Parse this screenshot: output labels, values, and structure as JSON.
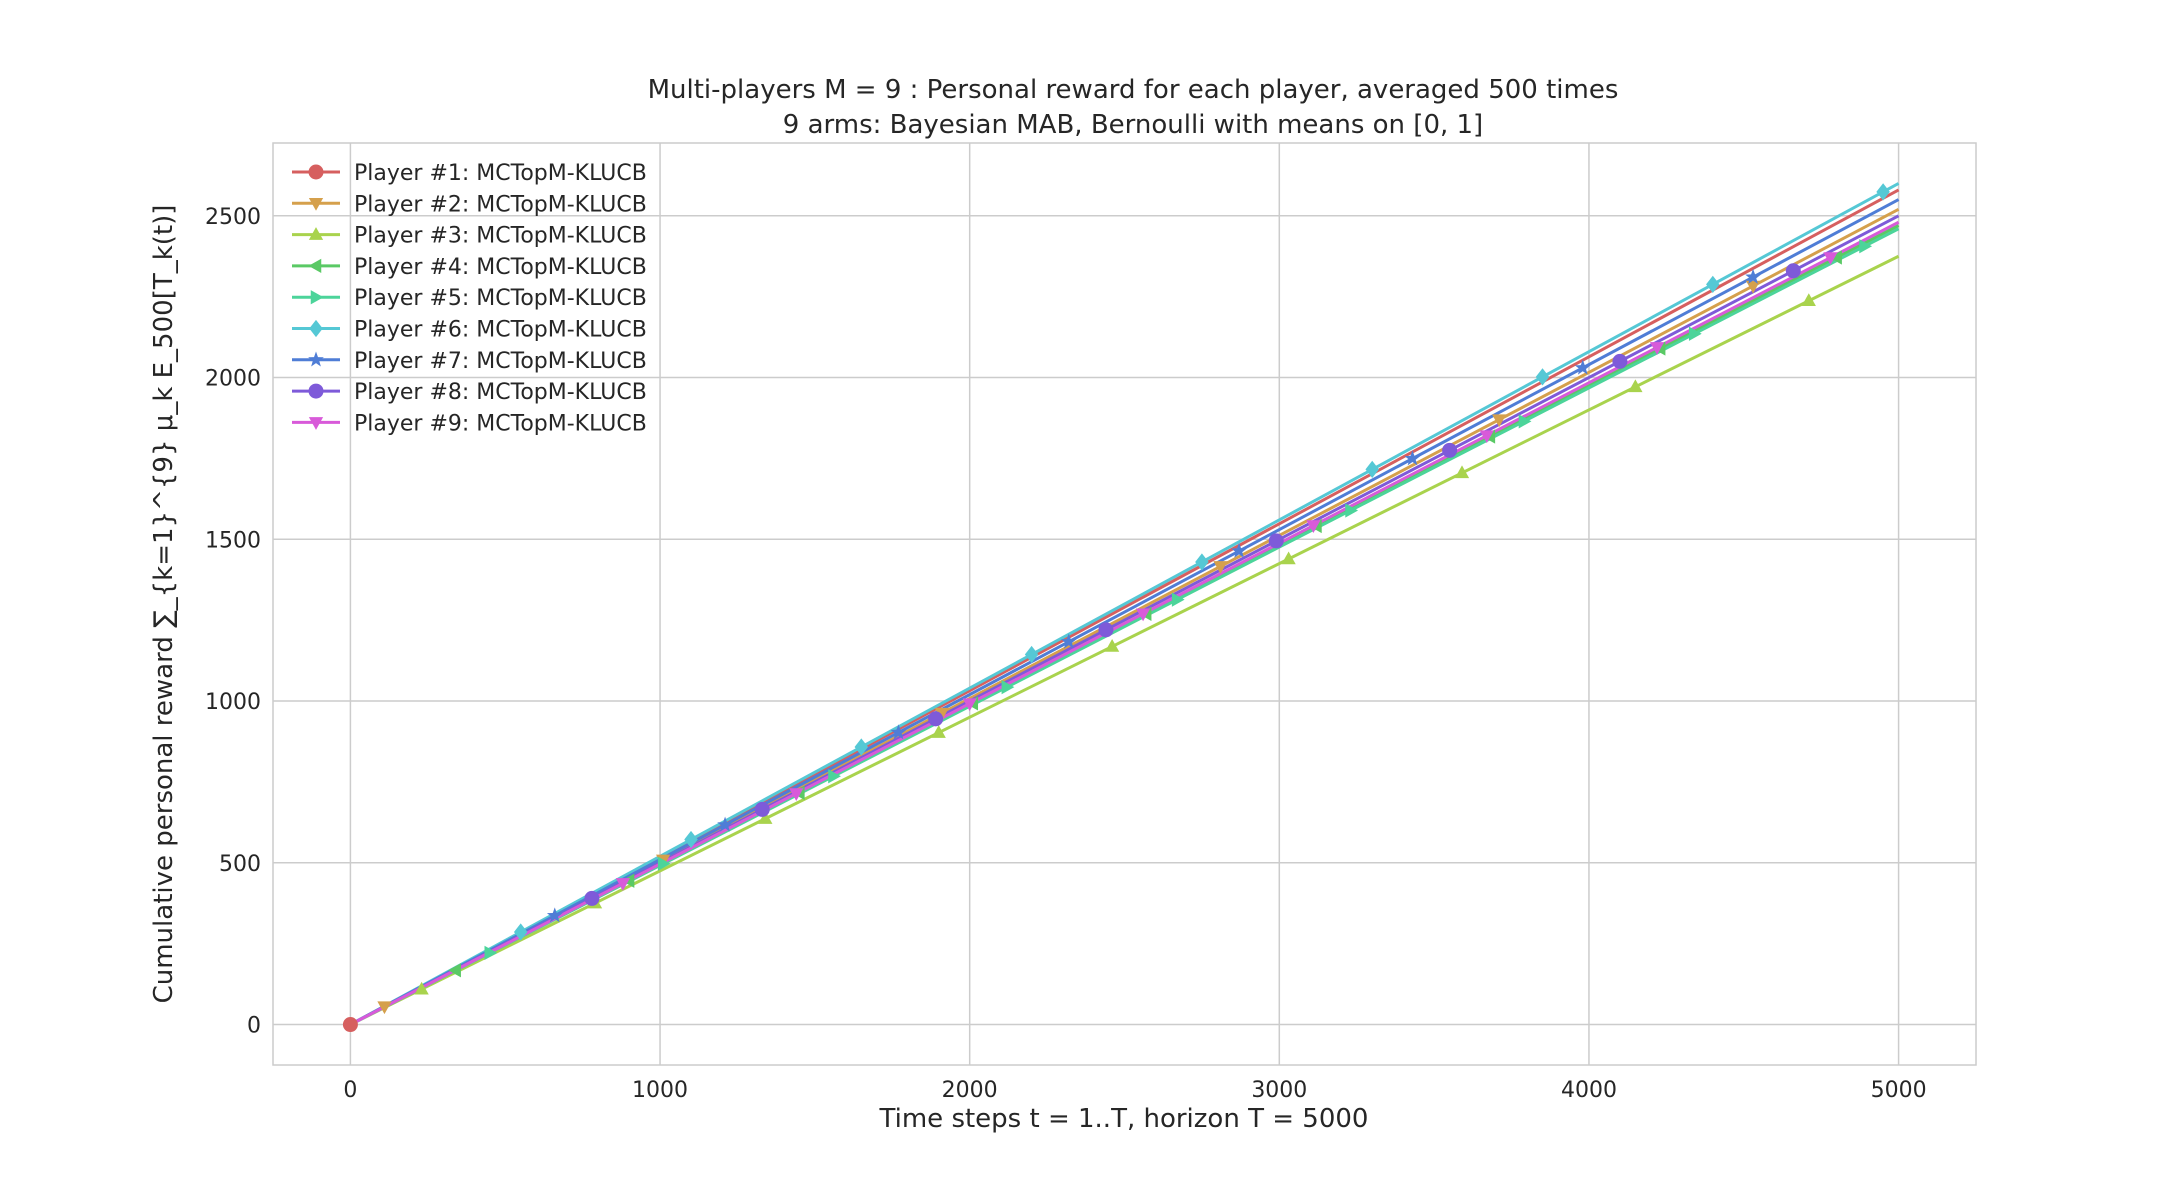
{
  "chart_data": {
    "type": "line",
    "title_line1": "Multi-players M = 9 : Personal reward for each player, averaged 500 times",
    "title_line2": "9 arms: Bayesian MAB, Bernoulli with means on [0, 1]",
    "xlabel": "Time steps t = 1..T, horizon T = 5000",
    "ylabel": "Cumulative personal reward ∑_{k=1}^{9} μ_k E_500[T_k(t)]",
    "xlim": [
      -250,
      5250
    ],
    "ylim": [
      -125,
      2725
    ],
    "xticks": [
      0,
      1000,
      2000,
      3000,
      4000,
      5000
    ],
    "yticks": [
      0,
      500,
      1000,
      1500,
      2000,
      2500
    ],
    "grid": true,
    "legend_position": "top-left",
    "x": [
      0,
      5000
    ],
    "series": [
      {
        "name": "Player #1: MCTopM-KLUCB",
        "color": "#d65f5f",
        "marker": "circle",
        "values": [
          0,
          2580
        ],
        "markers_x": [
          0
        ]
      },
      {
        "name": "Player #2: MCTopM-KLUCB",
        "color": "#d5a04c",
        "marker": "triangle-down",
        "values": [
          0,
          2520
        ],
        "markers_x": [
          110,
          1010,
          1910,
          2810,
          3710,
          4530
        ]
      },
      {
        "name": "Player #3: MCTopM-KLUCB",
        "color": "#a9d34d",
        "marker": "triangle-up",
        "values": [
          0,
          2375
        ],
        "markers_x": [
          230,
          790,
          1340,
          1900,
          2460,
          3030,
          3590,
          4150,
          4710
        ]
      },
      {
        "name": "Player #4: MCTopM-KLUCB",
        "color": "#5ac965",
        "marker": "triangle-left",
        "values": [
          0,
          2470
        ],
        "markers_x": [
          340,
          900,
          1450,
          2010,
          2570,
          3120,
          3680,
          4230,
          4800
        ]
      },
      {
        "name": "Player #5: MCTopM-KLUCB",
        "color": "#4cd49a",
        "marker": "triangle-right",
        "values": [
          0,
          2460
        ],
        "markers_x": [
          450,
          1010,
          1560,
          2120,
          2670,
          3230,
          3790,
          4340,
          4890
        ]
      },
      {
        "name": "Player #6: MCTopM-KLUCB",
        "color": "#55c8d5",
        "marker": "diamond",
        "values": [
          0,
          2600
        ],
        "markers_x": [
          550,
          1100,
          1650,
          2200,
          2750,
          3300,
          3850,
          4400,
          4950
        ]
      },
      {
        "name": "Player #7: MCTopM-KLUCB",
        "color": "#4f7dd6",
        "marker": "star",
        "values": [
          0,
          2550
        ],
        "markers_x": [
          660,
          1210,
          1770,
          2320,
          2870,
          3430,
          3980,
          4530
        ]
      },
      {
        "name": "Player #8: MCTopM-KLUCB",
        "color": "#7e5ad9",
        "marker": "circle",
        "values": [
          0,
          2500
        ],
        "markers_x": [
          780,
          1330,
          1890,
          2440,
          2990,
          3550,
          4100,
          4660
        ]
      },
      {
        "name": "Player #9: MCTopM-KLUCB",
        "color": "#d85ad9",
        "marker": "triangle-down",
        "values": [
          0,
          2480
        ],
        "markers_x": [
          880,
          1440,
          2000,
          2560,
          3110,
          3670,
          4220,
          4780
        ]
      }
    ]
  }
}
